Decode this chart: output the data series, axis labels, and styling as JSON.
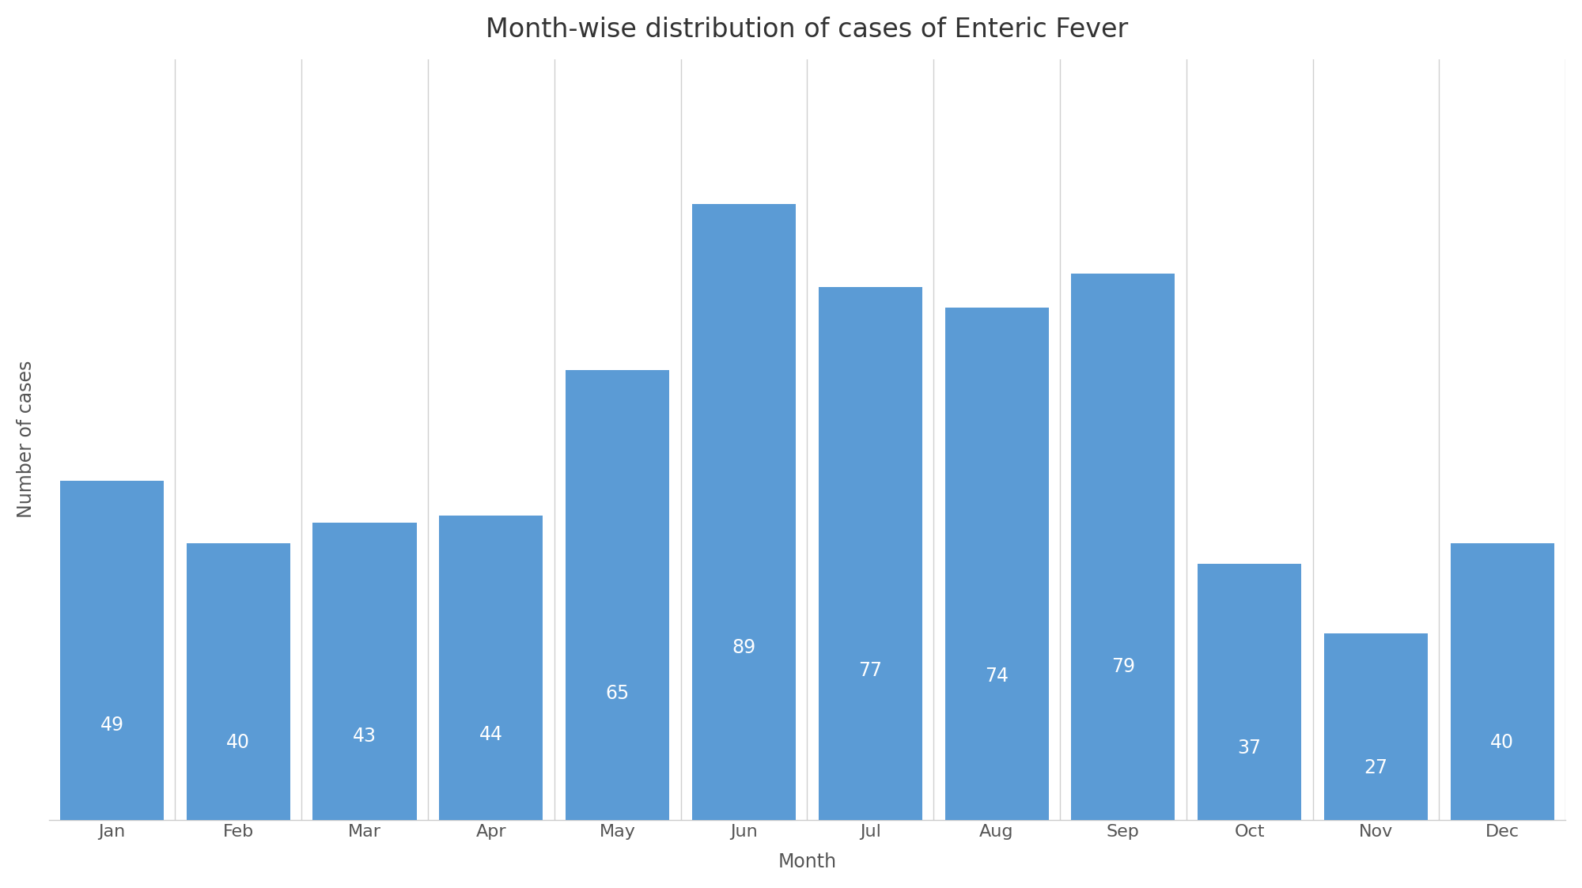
{
  "title": "Month-wise distribution of cases of Enteric Fever",
  "xlabel": "Month",
  "ylabel": "Number of cases",
  "categories": [
    "Jan",
    "Feb",
    "Mar",
    "Apr",
    "May",
    "Jun",
    "Jul",
    "Aug",
    "Sep",
    "Oct",
    "Nov",
    "Dec"
  ],
  "values": [
    49,
    40,
    43,
    44,
    65,
    89,
    77,
    74,
    79,
    37,
    27,
    40
  ],
  "bar_color": "#5b9bd5",
  "label_color": "#ffffff",
  "background_color": "#ffffff",
  "grid_color": "#d0d0d0",
  "title_fontsize": 24,
  "axis_label_fontsize": 17,
  "tick_fontsize": 16,
  "value_label_fontsize": 17,
  "ylim": [
    0,
    110
  ],
  "bar_width": 0.82
}
